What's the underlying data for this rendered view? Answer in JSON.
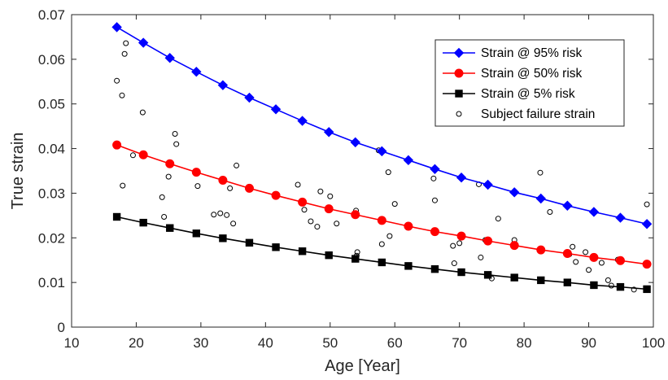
{
  "chart_data": {
    "type": "line",
    "title": "",
    "xlabel": "Age [Year]",
    "ylabel": "True strain",
    "xlim": [
      10,
      100
    ],
    "ylim": [
      0,
      0.07
    ],
    "x_ticks": [
      "10",
      "20",
      "30",
      "40",
      "50",
      "60",
      "70",
      "80",
      "90",
      "100"
    ],
    "y_ticks": [
      "0",
      "0.01",
      "0.02",
      "0.03",
      "0.04",
      "0.05",
      "0.06",
      "0.07"
    ],
    "grid": false,
    "legend_position": "top-right",
    "x": [
      17,
      21.1,
      25.2,
      29.3,
      33.4,
      37.5,
      41.6,
      45.7,
      49.8,
      53.9,
      58.0,
      62.1,
      66.2,
      70.3,
      74.4,
      78.5,
      82.6,
      86.7,
      90.8,
      94.9,
      99
    ],
    "series": [
      {
        "name": "Strain @ 95% risk",
        "color": "#0000ff",
        "marker": "diamond",
        "values": [
          0.0672,
          0.0637,
          0.0603,
          0.0572,
          0.0542,
          0.0514,
          0.0488,
          0.0462,
          0.0437,
          0.0414,
          0.0394,
          0.0374,
          0.0354,
          0.0335,
          0.0319,
          0.0302,
          0.0288,
          0.0272,
          0.0258,
          0.0245,
          0.0231
        ]
      },
      {
        "name": "Strain @ 50% risk",
        "color": "#ff0000",
        "marker": "circle",
        "values": [
          0.0408,
          0.0386,
          0.0366,
          0.0347,
          0.0329,
          0.0311,
          0.0295,
          0.028,
          0.0265,
          0.0252,
          0.0239,
          0.0226,
          0.0214,
          0.0204,
          0.0193,
          0.0183,
          0.0173,
          0.0165,
          0.0156,
          0.0149,
          0.0141
        ]
      },
      {
        "name": "Strain @ 5% risk",
        "color": "#000000",
        "marker": "square",
        "values": [
          0.0247,
          0.0234,
          0.0222,
          0.021,
          0.0199,
          0.0189,
          0.0179,
          0.017,
          0.0161,
          0.0153,
          0.0145,
          0.0137,
          0.013,
          0.0123,
          0.0117,
          0.0111,
          0.0105,
          0.01,
          0.0094,
          0.009,
          0.0085
        ]
      }
    ],
    "scatter": {
      "name": "Subject failure strain",
      "marker": "open-circle",
      "points": [
        [
          17,
          0.0552
        ],
        [
          17.8,
          0.0519
        ],
        [
          18.2,
          0.0612
        ],
        [
          18.4,
          0.0636
        ],
        [
          17.9,
          0.0317
        ],
        [
          19.5,
          0.0385
        ],
        [
          21,
          0.0481
        ],
        [
          24,
          0.0291
        ],
        [
          24.3,
          0.0247
        ],
        [
          25,
          0.0337
        ],
        [
          26,
          0.0433
        ],
        [
          26.2,
          0.041
        ],
        [
          29.5,
          0.0316
        ],
        [
          32,
          0.0252
        ],
        [
          33,
          0.0255
        ],
        [
          33.5,
          0.0197
        ],
        [
          34,
          0.0251
        ],
        [
          34.5,
          0.0311
        ],
        [
          35.5,
          0.0362
        ],
        [
          35,
          0.0232
        ],
        [
          45,
          0.0319
        ],
        [
          46,
          0.0263
        ],
        [
          47,
          0.0237
        ],
        [
          48,
          0.0225
        ],
        [
          48.5,
          0.0304
        ],
        [
          50,
          0.0293
        ],
        [
          51,
          0.0232
        ],
        [
          54,
          0.0261
        ],
        [
          54.2,
          0.0168
        ],
        [
          54.1,
          0.016
        ],
        [
          57.5,
          0.0396
        ],
        [
          58,
          0.0186
        ],
        [
          59,
          0.0347
        ],
        [
          59.2,
          0.0204
        ],
        [
          60,
          0.0276
        ],
        [
          66,
          0.0333
        ],
        [
          66.2,
          0.0284
        ],
        [
          69,
          0.0182
        ],
        [
          69.2,
          0.0143
        ],
        [
          70,
          0.0188
        ],
        [
          73,
          0.032
        ],
        [
          73.3,
          0.0156
        ],
        [
          74,
          0.0195
        ],
        [
          75,
          0.0109
        ],
        [
          76,
          0.0243
        ],
        [
          78.5,
          0.0195
        ],
        [
          82.5,
          0.0346
        ],
        [
          84,
          0.0258
        ],
        [
          87,
          0.0163
        ],
        [
          87.5,
          0.018
        ],
        [
          88,
          0.0146
        ],
        [
          89.5,
          0.0168
        ],
        [
          90,
          0.0128
        ],
        [
          92,
          0.0144
        ],
        [
          93,
          0.0105
        ],
        [
          93.5,
          0.0093
        ],
        [
          94.5,
          0.0151
        ],
        [
          97,
          0.0084
        ],
        [
          99,
          0.0275
        ]
      ]
    }
  }
}
